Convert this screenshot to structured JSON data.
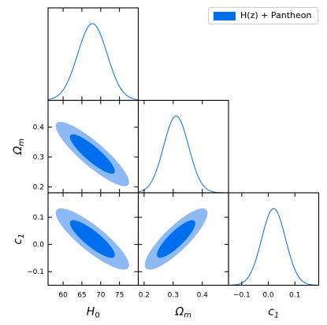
{
  "chart_data": {
    "type": "corner",
    "legend": {
      "label": "H(z) + Pantheon",
      "color": "#006FED",
      "placement": "top-right"
    },
    "colors": {
      "inner": "#006FED",
      "outer": "#8DB9F5",
      "line": "#006FED"
    },
    "parameters": [
      {
        "name": "H0",
        "symbol": "H",
        "subscript": "0",
        "mean": 67.8,
        "sigma": 3.9,
        "range": [
          56,
          80
        ],
        "ticks": [
          60,
          65,
          70,
          75
        ],
        "tick_labels": [
          "60",
          "65",
          "70",
          "75"
        ]
      },
      {
        "name": "Omega_m",
        "symbol": "Ω",
        "subscript": "m",
        "mean": 0.31,
        "sigma": 0.043,
        "range": [
          0.18,
          0.49
        ],
        "ticks": [
          0.2,
          0.3,
          0.4
        ],
        "tick_labels": [
          "0.2",
          "0.3",
          "0.4"
        ]
      },
      {
        "name": "c1",
        "symbol": "c",
        "subscript": "1",
        "mean": 0.02,
        "sigma": 0.045,
        "range": [
          -0.15,
          0.19
        ],
        "ticks": [
          -0.1,
          0.0,
          0.1
        ],
        "tick_labels": [
          "−0.1",
          "0.0",
          "0.1"
        ]
      }
    ],
    "correlations": [
      {
        "pair": [
          "H0",
          "Omega_m"
        ],
        "rho": -0.88
      },
      {
        "pair": [
          "H0",
          "c1"
        ],
        "rho": -0.86
      },
      {
        "pair": [
          "Omega_m",
          "c1"
        ],
        "rho": 0.85
      }
    ],
    "contour_levels": {
      "inner_chi2": 2.3,
      "outer_chi2": 6.17
    }
  }
}
